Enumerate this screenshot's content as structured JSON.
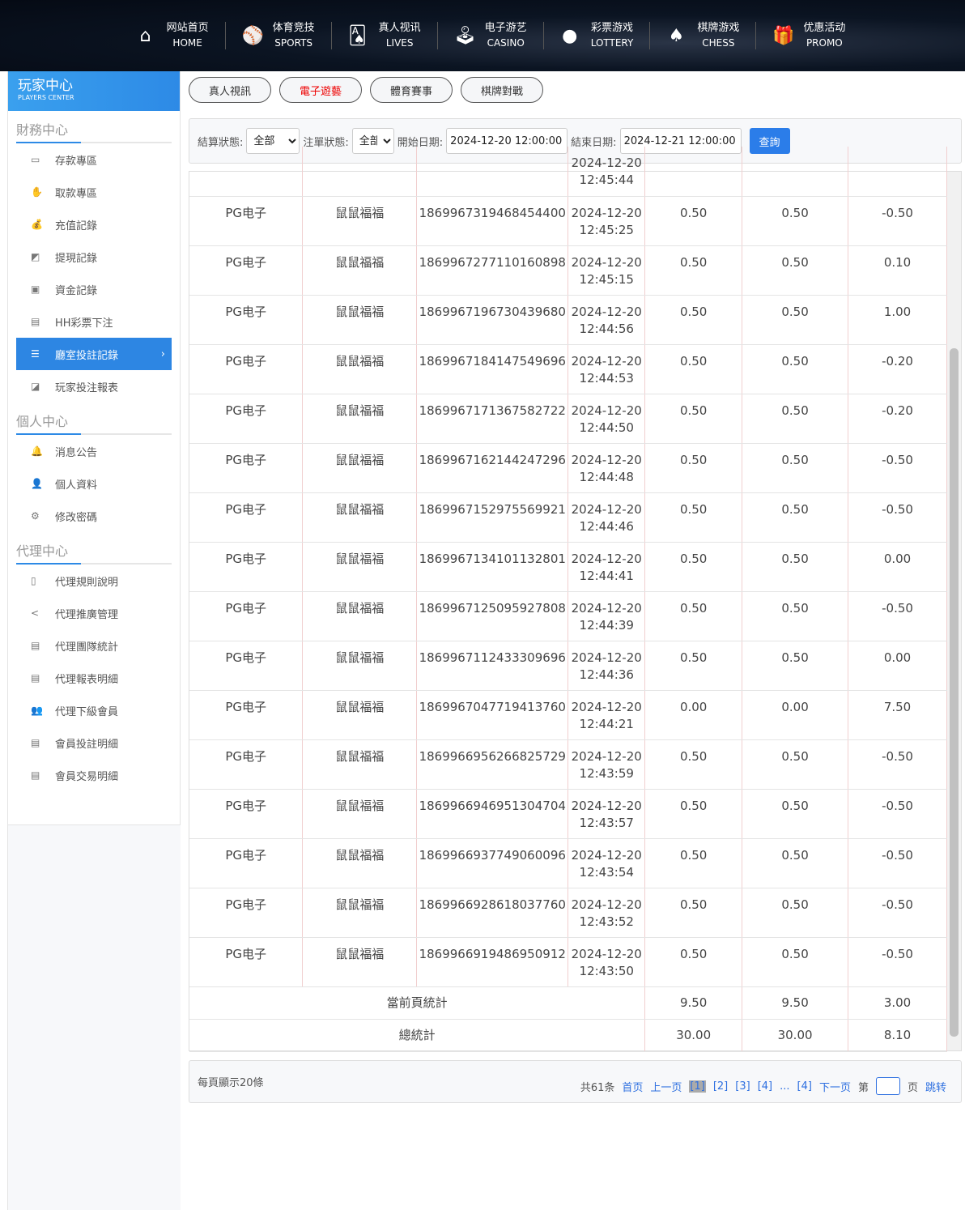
{
  "nav": [
    {
      "icon": "home-icon",
      "glyph": "⌂",
      "zh": "网站首页",
      "en": "HOME"
    },
    {
      "icon": "ball-icon",
      "glyph": "⚾",
      "zh": "体育竞技",
      "en": "SPORTS"
    },
    {
      "icon": "cards-icon",
      "glyph": "🂡",
      "zh": "真人视讯",
      "en": "LIVES"
    },
    {
      "icon": "joystick-icon",
      "glyph": "🕹",
      "zh": "电子游艺",
      "en": "CASINO"
    },
    {
      "icon": "lottery-balls-icon",
      "glyph": "●",
      "zh": "彩票游戏",
      "en": "LOTTERY"
    },
    {
      "icon": "spade-icon",
      "glyph": "♠",
      "zh": "棋牌游戏",
      "en": "CHESS"
    },
    {
      "icon": "gift-icon",
      "glyph": "🎁",
      "zh": "优惠活动",
      "en": "PROMO"
    }
  ],
  "players_center": {
    "zh": "玩家中心",
    "en": "PLAYERS CENTER"
  },
  "sidebar": {
    "finance": {
      "title": "財務中心",
      "items": [
        {
          "label": "存款專區",
          "glyph": "▭"
        },
        {
          "label": "取款專區",
          "glyph": "✋"
        },
        {
          "label": "充值記錄",
          "glyph": "💰"
        },
        {
          "label": "提現記錄",
          "glyph": "◩"
        },
        {
          "label": "資金記錄",
          "glyph": "▣"
        },
        {
          "label": "HH彩票下注",
          "glyph": "▤"
        },
        {
          "label": "廳室投註記錄",
          "glyph": "☰",
          "active": true
        },
        {
          "label": "玩家投注報表",
          "glyph": "◪"
        }
      ]
    },
    "personal": {
      "title": "個人中心",
      "items": [
        {
          "label": "消息公告",
          "glyph": "🔔"
        },
        {
          "label": "個人資料",
          "glyph": "👤"
        },
        {
          "label": "修改密碼",
          "glyph": "⚙"
        }
      ]
    },
    "agent": {
      "title": "代理中心",
      "items": [
        {
          "label": "代理規則說明",
          "glyph": "▯"
        },
        {
          "label": "代理推廣管理",
          "glyph": "<"
        },
        {
          "label": "代理團隊統計",
          "glyph": "▤"
        },
        {
          "label": "代理報表明細",
          "glyph": "▤"
        },
        {
          "label": "代理下級會員",
          "glyph": "👥"
        },
        {
          "label": "會員投註明細",
          "glyph": "▤"
        },
        {
          "label": "會員交易明細",
          "glyph": "▤"
        }
      ]
    }
  },
  "tabs": [
    {
      "label": "真人視訊"
    },
    {
      "label": "電子遊藝",
      "active": true
    },
    {
      "label": "體育賽事"
    },
    {
      "label": "棋牌對戰"
    }
  ],
  "filter": {
    "settle_label": "結算狀態:",
    "settle_value": "全部",
    "order_label": "注單狀態:",
    "order_value": "全部",
    "start_label": "開始日期:",
    "start_value": "2024-12-20 12:00:00",
    "end_label": "結束日期:",
    "end_value": "2024-12-21 12:00:00",
    "query": "查詢"
  },
  "rows": [
    [
      "",
      "",
      "",
      "2024-12-20 12:45:44",
      "",
      "",
      ""
    ],
    [
      "PG电子",
      "鼠鼠福福",
      "1869967319468454400",
      "2024-12-20 12:45:25",
      "0.50",
      "0.50",
      "-0.50"
    ],
    [
      "PG电子",
      "鼠鼠福福",
      "1869967277110160898",
      "2024-12-20 12:45:15",
      "0.50",
      "0.50",
      "0.10"
    ],
    [
      "PG电子",
      "鼠鼠福福",
      "1869967196730439680",
      "2024-12-20 12:44:56",
      "0.50",
      "0.50",
      "1.00"
    ],
    [
      "PG电子",
      "鼠鼠福福",
      "1869967184147549696",
      "2024-12-20 12:44:53",
      "0.50",
      "0.50",
      "-0.20"
    ],
    [
      "PG电子",
      "鼠鼠福福",
      "1869967171367582722",
      "2024-12-20 12:44:50",
      "0.50",
      "0.50",
      "-0.20"
    ],
    [
      "PG电子",
      "鼠鼠福福",
      "1869967162144247296",
      "2024-12-20 12:44:48",
      "0.50",
      "0.50",
      "-0.50"
    ],
    [
      "PG电子",
      "鼠鼠福福",
      "1869967152975569921",
      "2024-12-20 12:44:46",
      "0.50",
      "0.50",
      "-0.50"
    ],
    [
      "PG电子",
      "鼠鼠福福",
      "1869967134101132801",
      "2024-12-20 12:44:41",
      "0.50",
      "0.50",
      "0.00"
    ],
    [
      "PG电子",
      "鼠鼠福福",
      "1869967125095927808",
      "2024-12-20 12:44:39",
      "0.50",
      "0.50",
      "-0.50"
    ],
    [
      "PG电子",
      "鼠鼠福福",
      "1869967112433309696",
      "2024-12-20 12:44:36",
      "0.50",
      "0.50",
      "0.00"
    ],
    [
      "PG电子",
      "鼠鼠福福",
      "1869967047719413760",
      "2024-12-20 12:44:21",
      "0.00",
      "0.00",
      "7.50"
    ],
    [
      "PG电子",
      "鼠鼠福福",
      "1869966956266825729",
      "2024-12-20 12:43:59",
      "0.50",
      "0.50",
      "-0.50"
    ],
    [
      "PG电子",
      "鼠鼠福福",
      "1869966946951304704",
      "2024-12-20 12:43:57",
      "0.50",
      "0.50",
      "-0.50"
    ],
    [
      "PG电子",
      "鼠鼠福福",
      "1869966937749060096",
      "2024-12-20 12:43:54",
      "0.50",
      "0.50",
      "-0.50"
    ],
    [
      "PG电子",
      "鼠鼠福福",
      "1869966928618037760",
      "2024-12-20 12:43:52",
      "0.50",
      "0.50",
      "-0.50"
    ],
    [
      "PG电子",
      "鼠鼠福福",
      "1869966919486950912",
      "2024-12-20 12:43:50",
      "0.50",
      "0.50",
      "-0.50"
    ]
  ],
  "totals": [
    {
      "label": "當前頁統計",
      "values": [
        "9.50",
        "9.50",
        "3.00"
      ]
    },
    {
      "label": "總統計",
      "values": [
        "30.00",
        "30.00",
        "8.10"
      ]
    }
  ],
  "pager": {
    "per_page": "每頁顯示20條",
    "total": "共61条",
    "first": "首页",
    "prev": "上一页",
    "pages": [
      "[1]",
      "[2]",
      "[3]",
      "[4]",
      "...",
      "[4]"
    ],
    "next": "下一页",
    "goto_prefix": "第",
    "goto_suffix": "页",
    "jump": "跳转"
  }
}
